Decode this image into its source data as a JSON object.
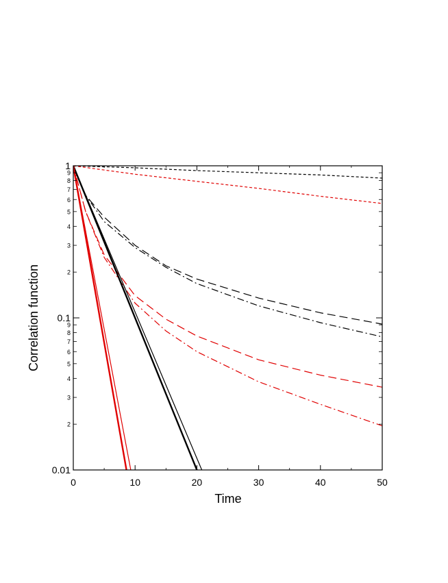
{
  "chart_data": {
    "type": "line",
    "xlabel": "Time",
    "ylabel": "Correlation function",
    "xlim": [
      0,
      50
    ],
    "ylim": [
      0.01,
      1
    ],
    "yscale": "log",
    "grid": false,
    "x_ticks": [
      0,
      10,
      20,
      30,
      40,
      50
    ],
    "x_tick_labels": [
      "0",
      "10",
      "20",
      "30",
      "40",
      "50"
    ],
    "y_major_ticks": [
      0.01,
      0.1,
      1
    ],
    "y_major_tick_labels": [
      "0.01",
      "0.1",
      "1"
    ],
    "y_minor_ticks": [
      0.02,
      0.03,
      0.04,
      0.05,
      0.06,
      0.07,
      0.08,
      0.09,
      0.2,
      0.3,
      0.4,
      0.5,
      0.6,
      0.7,
      0.8,
      0.9
    ],
    "y_minor_tick_labels": [
      "2",
      "3",
      "4",
      "5",
      "6",
      "7",
      "8",
      "9",
      "2",
      "3",
      "4",
      "5",
      "6",
      "7",
      "8",
      "9"
    ],
    "series": [
      {
        "color": "#000000",
        "style": "short-dash",
        "width": 1.2,
        "x": [
          0,
          10,
          20,
          30,
          40,
          50
        ],
        "y": [
          1.0,
          0.97,
          0.93,
          0.9,
          0.87,
          0.83
        ]
      },
      {
        "color": "#e00000",
        "style": "short-dash",
        "width": 1.2,
        "x": [
          0,
          10,
          20,
          30,
          40,
          50
        ],
        "y": [
          1.0,
          0.88,
          0.79,
          0.71,
          0.63,
          0.565
        ]
      },
      {
        "color": "#000000",
        "style": "long-dash",
        "width": 1.2,
        "x": [
          0,
          2,
          5,
          10,
          15,
          20,
          30,
          40,
          50
        ],
        "y": [
          1.0,
          0.64,
          0.46,
          0.3,
          0.22,
          0.18,
          0.135,
          0.108,
          0.091
        ]
      },
      {
        "color": "#000000",
        "style": "dash-dot",
        "width": 1.2,
        "x": [
          0,
          2,
          5,
          10,
          15,
          20,
          30,
          40,
          50
        ],
        "y": [
          1.0,
          0.64,
          0.43,
          0.29,
          0.215,
          0.168,
          0.12,
          0.093,
          0.075
        ]
      },
      {
        "color": "#e00000",
        "style": "long-dash",
        "width": 1.2,
        "x": [
          0,
          2,
          5,
          10,
          15,
          20,
          30,
          40,
          50
        ],
        "y": [
          1.0,
          0.5,
          0.26,
          0.14,
          0.098,
          0.076,
          0.053,
          0.042,
          0.035
        ]
      },
      {
        "color": "#e00000",
        "style": "dash-dot",
        "width": 1.2,
        "x": [
          0,
          2,
          5,
          10,
          15,
          20,
          30,
          40,
          50
        ],
        "y": [
          1.0,
          0.5,
          0.25,
          0.125,
          0.082,
          0.06,
          0.038,
          0.027,
          0.0195
        ]
      },
      {
        "color": "#000000",
        "style": "solid",
        "width": 2.4,
        "x": [
          0,
          20
        ],
        "y": [
          1.0,
          0.01
        ]
      },
      {
        "color": "#000000",
        "style": "solid",
        "width": 1.2,
        "x": [
          0,
          20.8
        ],
        "y": [
          1.0,
          0.01
        ]
      },
      {
        "color": "#e00000",
        "style": "solid",
        "width": 2.4,
        "x": [
          0,
          8.6
        ],
        "y": [
          1.0,
          0.01
        ]
      },
      {
        "color": "#e00000",
        "style": "solid",
        "width": 1.2,
        "x": [
          0,
          9.3
        ],
        "y": [
          1.0,
          0.01
        ]
      }
    ]
  }
}
